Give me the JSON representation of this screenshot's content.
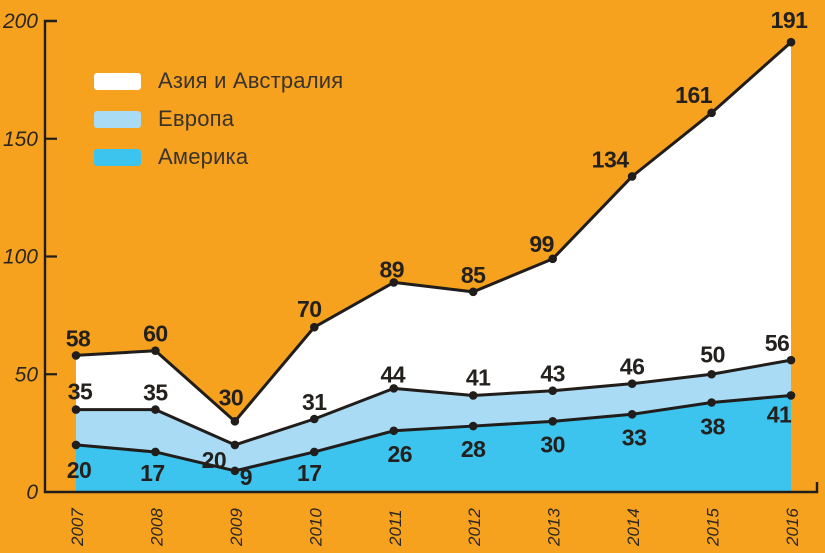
{
  "background_color": "#F6A21E",
  "line_color": "#211D1A",
  "label_color": "#23201D",
  "axis_label_color": "#2B2622",
  "legend_text_color": "#3A332B",
  "chart_data": {
    "type": "area",
    "title": "",
    "xlabel": "",
    "ylabel": "",
    "x": [
      "2007",
      "2008",
      "2009",
      "2010",
      "2011",
      "2012",
      "2013",
      "2014",
      "2015",
      "2016"
    ],
    "series": [
      {
        "id": "asia_australia",
        "name": "Азия и Австралия",
        "color": "#FFFFFF",
        "values": [
          58,
          60,
          30,
          70,
          89,
          85,
          99,
          134,
          161,
          191
        ]
      },
      {
        "id": "europe",
        "name": "Европа",
        "color": "#A9DBF5",
        "values": [
          35,
          35,
          20,
          31,
          44,
          41,
          43,
          46,
          50,
          56
        ]
      },
      {
        "id": "america",
        "name": "Америка",
        "color": "#3CC3EE",
        "values": [
          20,
          17,
          9,
          17,
          26,
          28,
          30,
          33,
          38,
          41
        ]
      }
    ],
    "ylim": [
      0,
      200
    ],
    "yticks": [
      0,
      50,
      100,
      150,
      200
    ],
    "grid": false,
    "legend_position": "top-left",
    "point_markers": true,
    "data_labels": true
  }
}
